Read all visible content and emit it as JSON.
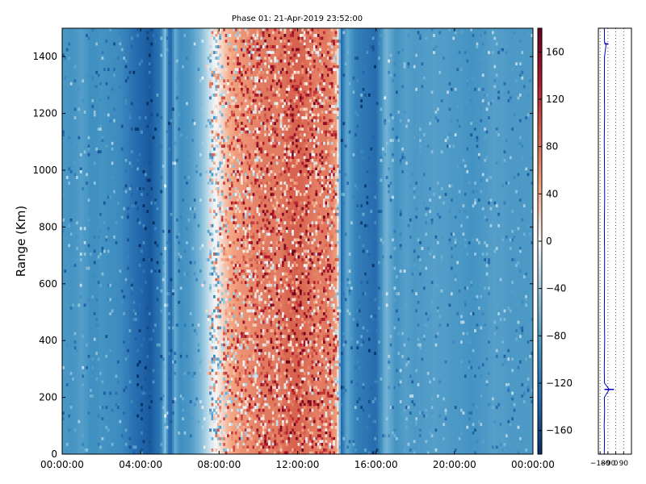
{
  "chart_data": [
    {
      "type": "heatmap",
      "title": "Phase 01: 21-Apr-2019 23:52:00",
      "ylabel": "Range (Km)",
      "xlabel": "",
      "x_ticks": [
        "00:00:00",
        "04:00:00",
        "08:00:00",
        "12:00:00",
        "16:00:00",
        "20:00:00",
        "00:00:00"
      ],
      "x_range_hours": [
        0,
        24
      ],
      "y_ticks": [
        0,
        200,
        400,
        600,
        800,
        1000,
        1200,
        1400
      ],
      "ylim": [
        0,
        1500
      ],
      "colormap": "RdBu_r",
      "colorbar_ticks": [
        160,
        120,
        80,
        40,
        0,
        -40,
        -80,
        -120,
        -160
      ],
      "colorbar_range": [
        -180,
        180
      ],
      "time_profile_hours": [
        0,
        0.5,
        1,
        1.5,
        2,
        2.5,
        3,
        3.5,
        4,
        4.5,
        5,
        5.25,
        5.5,
        5.75,
        6,
        6.5,
        7,
        7.5,
        8,
        8.5,
        9,
        9.5,
        10,
        10.5,
        11,
        11.5,
        12,
        12.5,
        13,
        13.5,
        14,
        14.25,
        14.5,
        15,
        15.5,
        16,
        16.5,
        17,
        17.5,
        18,
        19,
        20,
        21,
        22,
        23,
        24
      ],
      "time_profile_phase_deg": [
        -85,
        -90,
        -80,
        -95,
        -90,
        -95,
        -100,
        -120,
        -135,
        -145,
        -120,
        -50,
        -145,
        -70,
        -95,
        -85,
        -60,
        -20,
        10,
        40,
        55,
        60,
        70,
        75,
        70,
        85,
        90,
        80,
        70,
        75,
        50,
        -130,
        -70,
        -110,
        -120,
        -130,
        -60,
        -90,
        -80,
        -85,
        -80,
        -85,
        -90,
        -80,
        -85,
        -85
      ],
      "grid": false
    },
    {
      "type": "line",
      "x_ticks": [
        -180,
        -90,
        0,
        90
      ],
      "x_tick_labels": [
        "−180",
        "−90",
        "0",
        "90"
      ],
      "xlim": [
        -200,
        180
      ],
      "ylim": [
        0,
        1500
      ],
      "profile_range_km": [
        0,
        50,
        100,
        150,
        200,
        228,
        250,
        300,
        400,
        500,
        600,
        700,
        800,
        900,
        1000,
        1100,
        1200,
        1300,
        1400,
        1445,
        1450,
        1500
      ],
      "profile_phase_deg": [
        -132,
        -130,
        -133,
        -129,
        -131,
        -75,
        -130,
        -132,
        -128,
        -131,
        -130,
        -129,
        -131,
        -128,
        -130,
        -132,
        -129,
        -131,
        -130,
        -110,
        -130,
        -131
      ],
      "grid": true
    }
  ]
}
